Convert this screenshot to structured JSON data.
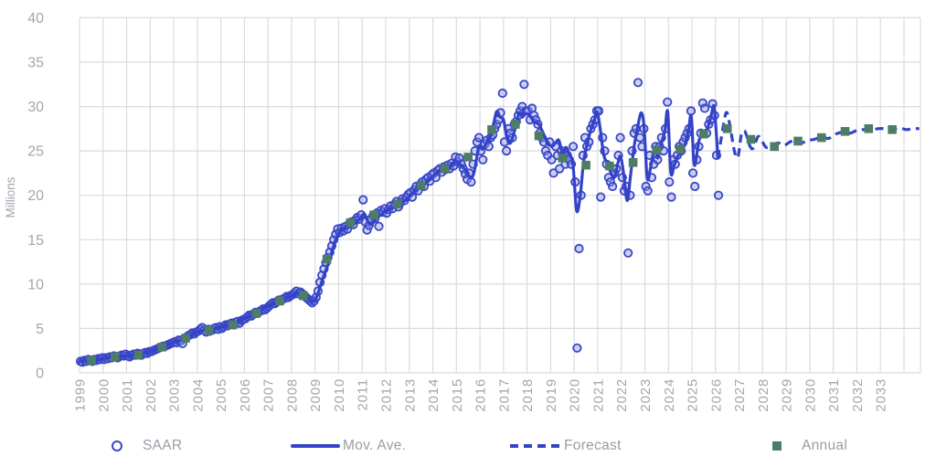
{
  "chart_data": {
    "type": "line",
    "title": "",
    "ylabel": "Millions",
    "xlabel": "",
    "ylim": [
      0,
      40
    ],
    "xlim": [
      1999,
      2034.7
    ],
    "y_ticks": [
      0,
      5,
      10,
      15,
      20,
      25,
      30,
      35,
      40
    ],
    "x_tick_years": [
      1999,
      2000,
      2001,
      2002,
      2003,
      2004,
      2005,
      2006,
      2007,
      2008,
      2009,
      2010,
      2011,
      2012,
      2013,
      2014,
      2015,
      2016,
      2017,
      2018,
      2019,
      2020,
      2021,
      2022,
      2023,
      2024,
      2025,
      2026,
      2027,
      2028,
      2029,
      2030,
      2031,
      2032,
      2033
    ],
    "grid": true,
    "legend_position": "bottom",
    "series": {
      "saar": {
        "label": "SAAR",
        "type": "scatter",
        "marker": "circle",
        "monthly_by_year": {
          "1999": [
            1.3,
            1.2,
            1.4,
            1.3,
            1.5,
            1.4,
            1.3,
            1.5,
            1.4,
            1.6,
            1.5,
            1.7
          ],
          "2000": [
            1.5,
            1.7,
            1.6,
            1.8,
            1.7,
            1.9,
            1.8,
            1.7,
            1.9,
            2.0,
            1.9,
            2.1
          ],
          "2001": [
            1.9,
            1.8,
            2.0,
            2.1,
            2.0,
            2.2,
            2.1,
            2.0,
            2.2,
            2.3,
            2.2,
            2.4
          ],
          "2002": [
            2.4,
            2.5,
            2.6,
            2.7,
            2.8,
            2.9,
            3.0,
            3.0,
            3.1,
            3.2,
            3.3,
            3.4
          ],
          "2003": [
            3.5,
            3.4,
            3.7,
            3.6,
            3.3,
            3.9,
            4.0,
            4.2,
            4.3,
            4.5,
            4.4,
            4.6
          ],
          "2004": [
            4.7,
            4.9,
            5.1,
            4.8,
            4.6,
            4.9,
            4.7,
            4.8,
            5.0,
            5.1,
            4.9,
            5.2
          ],
          "2005": [
            5.0,
            5.2,
            5.4,
            5.3,
            5.5,
            5.6,
            5.4,
            5.7,
            5.8,
            5.6,
            5.9,
            6.0
          ],
          "2006": [
            6.1,
            6.3,
            6.5,
            6.4,
            6.6,
            6.8,
            6.7,
            6.9,
            7.0,
            7.2,
            7.1,
            7.3
          ],
          "2007": [
            7.5,
            7.7,
            7.9,
            7.8,
            8.0,
            8.2,
            8.1,
            8.3,
            8.4,
            8.6,
            8.5,
            8.7
          ],
          "2008": [
            8.8,
            9.0,
            9.2,
            8.9,
            9.1,
            8.9,
            8.7,
            8.5,
            8.3,
            8.1,
            7.9,
            8.1
          ],
          "2009": [
            8.5,
            9.2,
            10.2,
            11.0,
            11.7,
            12.4,
            13.0,
            13.6,
            14.3,
            15.0,
            15.6,
            16.2
          ],
          "2010": [
            15.8,
            16.3,
            16.0,
            16.5,
            16.2,
            16.8,
            17.0,
            16.7,
            17.2,
            17.5,
            17.3,
            17.8
          ],
          "2011": [
            19.5,
            17.0,
            16.1,
            16.6,
            17.3,
            17.7,
            17.4,
            18.0,
            16.5,
            18.3,
            18.1,
            18.5
          ],
          "2012": [
            18.0,
            18.4,
            18.8,
            18.5,
            19.0,
            19.3,
            18.7,
            19.2,
            19.6,
            19.4,
            19.8,
            20.1
          ],
          "2013": [
            20.3,
            19.8,
            20.6,
            21.0,
            20.5,
            21.2,
            21.5,
            21.0,
            21.8,
            22.0,
            21.6,
            22.3
          ],
          "2014": [
            22.5,
            22.0,
            22.8,
            23.0,
            22.6,
            23.2,
            22.9,
            23.4,
            23.0,
            23.6,
            23.3,
            24.3
          ],
          "2015": [
            23.8,
            24.2,
            23.5,
            23.0,
            22.4,
            21.8,
            22.5,
            21.5,
            23.5,
            25.0,
            26.0,
            26.5
          ],
          "2016": [
            25.0,
            24.0,
            25.8,
            26.2,
            25.5,
            26.5,
            26.8,
            27.5,
            28.0,
            28.5,
            29.3,
            31.5
          ],
          "2017": [
            26.0,
            25.0,
            27.5,
            27.0,
            26.5,
            28.0,
            28.3,
            29.0,
            29.5,
            30.0,
            32.5,
            29.5
          ],
          "2018": [
            29.5,
            28.5,
            29.8,
            29.0,
            28.5,
            28.0,
            27.0,
            26.5,
            26.0,
            25.0,
            24.5,
            26.0
          ],
          "2019": [
            24.0,
            22.5,
            25.5,
            24.5,
            23.0,
            25.0,
            24.5,
            23.5,
            24.5,
            24.0,
            23.5,
            25.5
          ],
          "2020": [
            21.5,
            2.8,
            14.0,
            20.0,
            24.5,
            26.5,
            25.5,
            26.0,
            27.5,
            28.0,
            28.5,
            29.5
          ],
          "2021": [
            29.5,
            19.8,
            26.5,
            25.0,
            23.5,
            22.0,
            21.5,
            21.0,
            22.5,
            23.0,
            24.5,
            26.5
          ],
          "2022": [
            22.0,
            20.5,
            21.0,
            13.5,
            20.0,
            25.0,
            27.0,
            27.5,
            32.7,
            26.5,
            25.5,
            27.5
          ],
          "2023": [
            21.0,
            20.5,
            24.5,
            22.0,
            23.5,
            25.5,
            24.0,
            25.5,
            26.5,
            25.0,
            27.5,
            30.5
          ],
          "2024": [
            21.5,
            19.8,
            24.0,
            23.5,
            24.5,
            25.5,
            25.0,
            26.0,
            26.5,
            27.0,
            27.5,
            29.5
          ],
          "2025": [
            22.5,
            21.0,
            24.0,
            25.5,
            27.0,
            30.4,
            29.8,
            27.0,
            28.0,
            28.5,
            30.3,
            29.0
          ],
          "2026": [
            24.5,
            20.0
          ]
        }
      },
      "mov_ave": {
        "label": "Mov. Ave.",
        "type": "line",
        "style": "solid",
        "points": [
          [
            1999.0,
            1.3
          ],
          [
            1999.5,
            1.4
          ],
          [
            2000.0,
            1.6
          ],
          [
            2000.5,
            1.8
          ],
          [
            2001.0,
            1.9
          ],
          [
            2001.5,
            2.1
          ],
          [
            2002.0,
            2.4
          ],
          [
            2002.5,
            2.9
          ],
          [
            2003.0,
            3.4
          ],
          [
            2003.5,
            3.9
          ],
          [
            2004.0,
            4.6
          ],
          [
            2004.5,
            4.9
          ],
          [
            2005.0,
            5.1
          ],
          [
            2005.5,
            5.5
          ],
          [
            2006.0,
            6.1
          ],
          [
            2006.5,
            6.7
          ],
          [
            2007.0,
            7.5
          ],
          [
            2007.5,
            8.1
          ],
          [
            2008.0,
            8.7
          ],
          [
            2008.3,
            9.0
          ],
          [
            2008.6,
            8.6
          ],
          [
            2008.9,
            8.0
          ],
          [
            2009.1,
            8.8
          ],
          [
            2009.3,
            10.4
          ],
          [
            2009.6,
            12.6
          ],
          [
            2009.85,
            14.8
          ],
          [
            2010.1,
            16.0
          ],
          [
            2010.4,
            16.4
          ],
          [
            2010.7,
            16.9
          ],
          [
            2010.95,
            17.5
          ],
          [
            2011.1,
            17.9
          ],
          [
            2011.25,
            17.0
          ],
          [
            2011.4,
            16.7
          ],
          [
            2011.6,
            17.4
          ],
          [
            2011.8,
            17.8
          ],
          [
            2012.0,
            18.2
          ],
          [
            2012.3,
            18.6
          ],
          [
            2012.6,
            19.1
          ],
          [
            2012.9,
            19.6
          ],
          [
            2013.2,
            20.4
          ],
          [
            2013.5,
            20.9
          ],
          [
            2013.8,
            21.6
          ],
          [
            2014.1,
            22.4
          ],
          [
            2014.4,
            22.9
          ],
          [
            2014.7,
            23.1
          ],
          [
            2014.95,
            23.8
          ],
          [
            2015.15,
            23.5
          ],
          [
            2015.4,
            22.8
          ],
          [
            2015.6,
            22.0
          ],
          [
            2015.75,
            22.6
          ],
          [
            2015.95,
            25.4
          ],
          [
            2016.1,
            25.2
          ],
          [
            2016.3,
            26.0
          ],
          [
            2016.5,
            27.0
          ],
          [
            2016.7,
            29.4
          ],
          [
            2016.85,
            28.8
          ],
          [
            2017.0,
            28.5
          ],
          [
            2017.15,
            26.4
          ],
          [
            2017.3,
            25.9
          ],
          [
            2017.5,
            27.6
          ],
          [
            2017.67,
            29.3
          ],
          [
            2017.8,
            28.8
          ],
          [
            2017.95,
            29.2
          ],
          [
            2018.1,
            29.0
          ],
          [
            2018.3,
            28.3
          ],
          [
            2018.5,
            28.0
          ],
          [
            2018.7,
            26.9
          ],
          [
            2018.9,
            25.9
          ],
          [
            2019.05,
            25.5
          ],
          [
            2019.2,
            25.9
          ],
          [
            2019.35,
            26.2
          ],
          [
            2019.5,
            24.8
          ],
          [
            2019.65,
            25.4
          ],
          [
            2019.8,
            24.6
          ],
          [
            2019.95,
            23.4
          ],
          [
            2020.1,
            18.3
          ],
          [
            2020.25,
            19.8
          ],
          [
            2020.4,
            23.8
          ],
          [
            2020.55,
            25.8
          ],
          [
            2020.7,
            27.3
          ],
          [
            2020.85,
            28.4
          ],
          [
            2020.97,
            29.4
          ],
          [
            2021.1,
            27.6
          ],
          [
            2021.25,
            24.6
          ],
          [
            2021.4,
            23.6
          ],
          [
            2021.55,
            22.6
          ],
          [
            2021.7,
            22.0
          ],
          [
            2021.85,
            23.6
          ],
          [
            2021.97,
            24.4
          ],
          [
            2022.1,
            22.4
          ],
          [
            2022.25,
            19.4
          ],
          [
            2022.4,
            22.4
          ],
          [
            2022.55,
            25.6
          ],
          [
            2022.7,
            27.8
          ],
          [
            2022.85,
            29.3
          ],
          [
            2022.97,
            27.6
          ],
          [
            2023.1,
            21.9
          ],
          [
            2023.25,
            23.2
          ],
          [
            2023.4,
            25.2
          ],
          [
            2023.55,
            24.2
          ],
          [
            2023.7,
            25.8
          ],
          [
            2023.85,
            27.3
          ],
          [
            2023.97,
            29.4
          ],
          [
            2024.1,
            22.6
          ],
          [
            2024.25,
            23.4
          ],
          [
            2024.4,
            24.4
          ],
          [
            2024.55,
            25.1
          ],
          [
            2024.7,
            25.7
          ],
          [
            2024.85,
            27.3
          ],
          [
            2024.97,
            28.9
          ],
          [
            2025.1,
            23.4
          ],
          [
            2025.3,
            26.2
          ],
          [
            2025.5,
            26.9
          ],
          [
            2025.65,
            27.5
          ],
          [
            2025.8,
            28.8
          ],
          [
            2025.93,
            30.1
          ],
          [
            2026.02,
            27.5
          ],
          [
            2026.1,
            24.2
          ]
        ]
      },
      "forecast": {
        "label": "Forecast",
        "type": "line",
        "style": "dashed",
        "points": [
          [
            2026.1,
            24.2
          ],
          [
            2026.25,
            26.5
          ],
          [
            2026.45,
            29.3
          ],
          [
            2026.6,
            28.0
          ],
          [
            2026.8,
            25.0
          ],
          [
            2026.95,
            24.3
          ],
          [
            2027.1,
            26.8
          ],
          [
            2027.25,
            27.2
          ],
          [
            2027.45,
            25.6
          ],
          [
            2027.6,
            25.3
          ],
          [
            2027.8,
            26.6
          ],
          [
            2027.95,
            26.2
          ],
          [
            2028.15,
            25.4
          ],
          [
            2028.4,
            25.6
          ],
          [
            2028.65,
            25.9
          ],
          [
            2028.9,
            25.6
          ],
          [
            2029.15,
            26.0
          ],
          [
            2029.4,
            26.2
          ],
          [
            2029.65,
            25.9
          ],
          [
            2029.9,
            26.2
          ],
          [
            2030.2,
            26.3
          ],
          [
            2030.5,
            26.6
          ],
          [
            2030.8,
            26.4
          ],
          [
            2031.1,
            26.9
          ],
          [
            2031.4,
            27.1
          ],
          [
            2031.7,
            27.0
          ],
          [
            2032.0,
            27.3
          ],
          [
            2032.3,
            27.4
          ],
          [
            2032.6,
            27.3
          ],
          [
            2032.9,
            27.5
          ],
          [
            2033.2,
            27.5
          ],
          [
            2033.5,
            27.4
          ],
          [
            2033.8,
            27.6
          ],
          [
            2034.1,
            27.4
          ],
          [
            2034.4,
            27.5
          ],
          [
            2034.65,
            27.5
          ]
        ]
      },
      "annual": {
        "label": "Annual",
        "type": "scatter",
        "marker": "square",
        "points": [
          [
            1999,
            1.4
          ],
          [
            2000,
            1.8
          ],
          [
            2001,
            2.0
          ],
          [
            2002,
            2.9
          ],
          [
            2003,
            3.9
          ],
          [
            2004,
            4.8
          ],
          [
            2005,
            5.4
          ],
          [
            2006,
            6.7
          ],
          [
            2007,
            8.1
          ],
          [
            2008,
            8.7
          ],
          [
            2009,
            12.8
          ],
          [
            2010,
            16.9
          ],
          [
            2011,
            17.8
          ],
          [
            2012,
            19.0
          ],
          [
            2013,
            21.1
          ],
          [
            2014,
            23.0
          ],
          [
            2015,
            24.3
          ],
          [
            2016,
            27.4
          ],
          [
            2017,
            28.0
          ],
          [
            2018,
            26.7
          ],
          [
            2019,
            24.2
          ],
          [
            2020,
            23.4
          ],
          [
            2021,
            23.3
          ],
          [
            2022,
            23.7
          ],
          [
            2023,
            25.1
          ],
          [
            2024,
            25.2
          ],
          [
            2025,
            26.9
          ],
          [
            2026,
            27.5
          ],
          [
            2027,
            26.3
          ],
          [
            2028,
            25.5
          ],
          [
            2029,
            26.1
          ],
          [
            2030,
            26.5
          ],
          [
            2031,
            27.2
          ],
          [
            2032,
            27.5
          ],
          [
            2033,
            27.4
          ]
        ]
      }
    }
  },
  "colors": {
    "line_blue": "#3342c8",
    "marker_stroke_blue": "#3a45c6",
    "marker_fill_blue": "rgba(140,152,232,0.45)",
    "annual_green": "#4e7d66",
    "grid": "#d9dbdf",
    "axis_text": "#a2a6ae"
  }
}
